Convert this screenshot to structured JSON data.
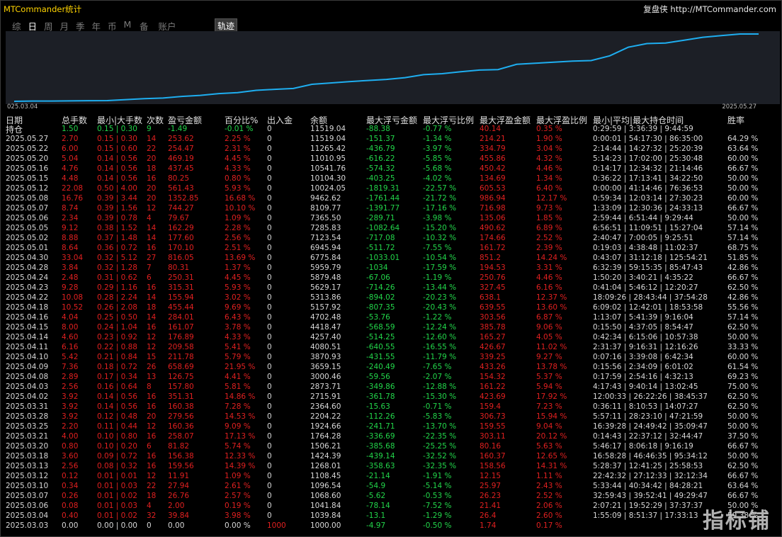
{
  "app": {
    "title": "MTCommander统计",
    "brand": "复盘侠 http://MTCommander.com"
  },
  "tabs": [
    {
      "label": "综",
      "active": false
    },
    {
      "label": "日",
      "active": true
    },
    {
      "label": "周",
      "active": false
    },
    {
      "label": "月",
      "active": false
    },
    {
      "label": "季",
      "active": false
    },
    {
      "label": "年",
      "active": false
    },
    {
      "label": "币",
      "active": false
    },
    {
      "label": "M",
      "active": false
    },
    {
      "label": "备",
      "active": false
    },
    {
      "label": "账户",
      "active": false
    }
  ],
  "track_button": "轨迹",
  "chart": {
    "date_start": "025.03.04",
    "date_end": "2025.05.27",
    "line_color": "#1eaef0",
    "bg_color": "#1c1f26"
  },
  "columns": {
    "date": "日期",
    "date2": "持仓",
    "total": "总手数",
    "minmax": "最小|大手数",
    "count": "次数",
    "pnl": "盈亏金额",
    "pct": "百分比%",
    "flow": "出入金",
    "balance": "余额",
    "mdd": "最大浮亏金额",
    "mddp": "最大浮亏比例",
    "mfe": "最大浮盈金额",
    "mfep": "最大浮盈比例",
    "hold": "最小|平均|最大持仓时间",
    "win": "胜率"
  },
  "holding": [
    "",
    "1.50",
    "0.15 | 0.30",
    "9",
    "-1.49",
    "-0.01 %",
    "0",
    "11519.04",
    "-88.38",
    "-0.77 %",
    "40.14",
    "0.35 %",
    "0:29:59 | 3:36:39 | 9:44:59",
    ""
  ],
  "rows": [
    [
      "2025.05.27",
      "2.70",
      "0.15 | 0.30",
      "14",
      "253.62",
      "2.25 %",
      "0",
      "11519.04",
      "-151.37",
      "-1.34 %",
      "214.21",
      "1.90 %",
      "0:00:01 | 54:17:30 | 86:35:00",
      "64.29 %"
    ],
    [
      "2025.05.22",
      "6.00",
      "0.15 | 0.60",
      "22",
      "254.47",
      "2.31 %",
      "0",
      "11265.42",
      "-436.79",
      "-3.97 %",
      "334.79",
      "3.04 %",
      "2:14:44 | 14:27:32 | 25:20:39",
      "63.64 %"
    ],
    [
      "2025.05.20",
      "5.04",
      "0.14 | 0.56",
      "20",
      "469.19",
      "4.45 %",
      "0",
      "11010.95",
      "-616.22",
      "-5.85 %",
      "455.86",
      "4.32 %",
      "5:14:23 | 17:02:00 | 25:30:48",
      "60.00 %"
    ],
    [
      "2025.05.16",
      "4.76",
      "0.14 | 0.56",
      "18",
      "437.45",
      "4.33 %",
      "0",
      "10541.76",
      "-574.32",
      "-5.68 %",
      "450.42",
      "4.46 %",
      "0:14:17 | 12:34:32 | 21:14:46",
      "66.67 %"
    ],
    [
      "2025.05.15",
      "4.48",
      "0.14 | 0.56",
      "16",
      "80.25",
      "0.80 %",
      "0",
      "10104.30",
      "-403.25",
      "-4.02 %",
      "134.69",
      "1.34 %",
      "0:36:22 | 17:13:41 | 34:22:50",
      "50.00 %"
    ],
    [
      "2025.05.12",
      "22.08",
      "0.50 | 4.00",
      "20",
      "561.43",
      "5.93 %",
      "0",
      "10024.05",
      "-1819.31",
      "-22.57 %",
      "605.53",
      "6.40 %",
      "0:00:00 | 41:14:46 | 76:36:53",
      "50.00 %"
    ],
    [
      "2025.05.08",
      "16.76",
      "0.39 | 3.44",
      "20",
      "1352.85",
      "16.68 %",
      "0",
      "9462.62",
      "-1761.44",
      "-21.72 %",
      "986.94",
      "12.17 %",
      "0:59:34 | 12:03:14 | 27:30:23",
      "60.00 %"
    ],
    [
      "2025.05.07",
      "8.74",
      "0.39 | 1.56",
      "12",
      "744.27",
      "10.10 %",
      "0",
      "8109.77",
      "-1391.77",
      "-17.16 %",
      "716.98",
      "9.73 %",
      "1:33:09 | 12:30:36 | 24:33:13",
      "66.67 %"
    ],
    [
      "2025.05.06",
      "2.34",
      "0.39 | 0.78",
      "4",
      "79.67",
      "1.09 %",
      "0",
      "7365.50",
      "-289.71",
      "-3.98 %",
      "135.06",
      "1.85 %",
      "2:59:44 | 6:51:44 | 9:29:44",
      "50.00 %"
    ],
    [
      "2025.05.05",
      "9.12",
      "0.38 | 1.52",
      "14",
      "162.29",
      "2.28 %",
      "0",
      "7285.83",
      "-1082.64",
      "-15.20 %",
      "490.62",
      "6.89 %",
      "6:56:51 | 11:09:51 | 15:27:04",
      "57.14 %"
    ],
    [
      "2025.05.02",
      "8.88",
      "0.37 | 1.48",
      "14",
      "177.60",
      "2.56 %",
      "0",
      "7123.54",
      "-717.08",
      "-10.32 %",
      "174.66",
      "2.52 %",
      "2:40:47 | 7:00:05 | 9:25:51",
      "57.14 %"
    ],
    [
      "2025.05.01",
      "8.64",
      "0.36 | 0.72",
      "16",
      "170.10",
      "2.51 %",
      "0",
      "6945.94",
      "-511.72",
      "-7.55 %",
      "161.72",
      "2.39 %",
      "0:19:03 | 4:38:48 | 11:02:37",
      "68.75 %"
    ],
    [
      "2025.04.30",
      "33.04",
      "0.32 | 5.12",
      "27",
      "816.05",
      "13.69 %",
      "0",
      "6775.84",
      "-1033.01",
      "-10.54 %",
      "851.2",
      "14.24 %",
      "0:43:07 | 31:12:18 | 125:54:21",
      "51.85 %"
    ],
    [
      "2025.04.28",
      "3.84",
      "0.32 | 1.28",
      "7",
      "80.31",
      "1.37 %",
      "0",
      "5959.79",
      "-1034",
      "-17.59 %",
      "194.53",
      "3.31 %",
      "6:32:39 | 59:15:35 | 85:47:43",
      "42.86 %"
    ],
    [
      "2025.04.24",
      "2.48",
      "0.31 | 0.62",
      "6",
      "250.31",
      "4.45 %",
      "0",
      "5879.48",
      "-67.06",
      "-1.19 %",
      "250.76",
      "4.46 %",
      "1:50:20 | 3:40:21 | 4:35:22",
      "66.67 %"
    ],
    [
      "2025.04.23",
      "9.28",
      "0.29 | 1.16",
      "16",
      "315.31",
      "5.93 %",
      "0",
      "5629.17",
      "-714.26",
      "-13.44 %",
      "327.45",
      "6.16 %",
      "0:41:04 | 5:46:12 | 12:20:27",
      "62.50 %"
    ],
    [
      "2025.04.22",
      "10.08",
      "0.28 | 2.24",
      "14",
      "155.94",
      "3.02 %",
      "0",
      "5313.86",
      "-894.02",
      "-20.23 %",
      "638.1",
      "12.37 %",
      "18:09:26 | 28:43:44 | 37:54:28",
      "42.86 %"
    ],
    [
      "2025.04.18",
      "10.52",
      "0.26 | 2.08",
      "18",
      "455.44",
      "9.69 %",
      "0",
      "5157.92",
      "-807.35",
      "-20.43 %",
      "639.55",
      "13.60 %",
      "6:09:02 | 12:42:01 | 18:53:58",
      "55.56 %"
    ],
    [
      "2025.04.16",
      "4.04",
      "0.25 | 0.50",
      "14",
      "284.01",
      "6.43 %",
      "0",
      "4702.48",
      "-53.76",
      "-1.22 %",
      "303.56",
      "6.87 %",
      "1:13:07 | 5:41:39 | 9:16:04",
      "57.14 %"
    ],
    [
      "2025.04.15",
      "8.00",
      "0.24 | 1.04",
      "16",
      "161.07",
      "3.78 %",
      "0",
      "4418.47",
      "-568.59",
      "-12.24 %",
      "385.78",
      "9.06 %",
      "0:15:50 | 4:37:05 | 8:54:47",
      "62.50 %"
    ],
    [
      "2025.04.14",
      "4.60",
      "0.23 | 0.92",
      "12",
      "176.89",
      "4.33 %",
      "0",
      "4257.40",
      "-514.25",
      "-12.60 %",
      "165.27",
      "4.05 %",
      "0:42:34 | 6:15:06 | 10:57:38",
      "50.00 %"
    ],
    [
      "2025.04.11",
      "6.16",
      "0.22 | 0.88",
      "12",
      "209.58",
      "5.41 %",
      "0",
      "4080.51",
      "-640.55",
      "-16.55 %",
      "426.67",
      "11.02 %",
      "2:31:37 | 9:16:31 | 12:16:26",
      "33.33 %"
    ],
    [
      "2025.04.10",
      "5.42",
      "0.21 | 0.84",
      "15",
      "211.78",
      "5.79 %",
      "0",
      "3870.93",
      "-431.55",
      "-11.79 %",
      "339.25",
      "9.27 %",
      "0:07:16 | 3:39:08 | 6:42:34",
      "60.00 %"
    ],
    [
      "2025.04.09",
      "7.36",
      "0.18 | 0.72",
      "26",
      "658.69",
      "21.95 %",
      "0",
      "3659.15",
      "-240.49",
      "-7.65 %",
      "433.26",
      "13.78 %",
      "0:15:56 | 2:34:09 | 6:01:02",
      "61.54 %"
    ],
    [
      "2025.04.08",
      "2.89",
      "0.17 | 0.34",
      "13",
      "126.75",
      "4.41 %",
      "0",
      "3000.46",
      "-59.56",
      "-2.07 %",
      "154.32",
      "5.37 %",
      "0:17:59 | 2:54:16 | 4:32:13",
      "69.23 %"
    ],
    [
      "2025.04.03",
      "2.56",
      "0.16 | 0.64",
      "8",
      "157.80",
      "5.81 %",
      "0",
      "2873.71",
      "-349.86",
      "-12.88 %",
      "161.22",
      "5.94 %",
      "4:17:43 | 9:40:14 | 13:02:45",
      "75.00 %"
    ],
    [
      "2025.04.02",
      "3.92",
      "0.14 | 0.56",
      "16",
      "351.31",
      "14.86 %",
      "0",
      "2715.91",
      "-361.78",
      "-15.30 %",
      "423.69",
      "17.92 %",
      "12:00:33 | 26:22:26 | 38:45:37",
      "62.50 %"
    ],
    [
      "2025.03.31",
      "3.92",
      "0.14 | 0.56",
      "16",
      "160.38",
      "7.28 %",
      "0",
      "2364.60",
      "-15.63",
      "-0.71 %",
      "159.4",
      "7.23 %",
      "0:36:11 | 8:10:53 | 14:07:27",
      "62.50 %"
    ],
    [
      "2025.03.28",
      "3.92",
      "0.12 | 0.48",
      "20",
      "279.56",
      "14.53 %",
      "0",
      "2204.22",
      "-112.26",
      "-5.83 %",
      "306.73",
      "15.94 %",
      "5:57:11 | 28:23:10 | 47:21:59",
      "50.00 %"
    ],
    [
      "2025.03.25",
      "2.20",
      "0.11 | 0.44",
      "12",
      "160.36",
      "9.09 %",
      "0",
      "1924.66",
      "-241.71",
      "-13.70 %",
      "159.55",
      "9.04 %",
      "16:39:28 | 24:49:42 | 35:09:47",
      "50.00 %"
    ],
    [
      "2025.03.21",
      "4.00",
      "0.10 | 0.80",
      "16",
      "258.07",
      "17.13 %",
      "0",
      "1764.28",
      "-336.69",
      "-22.35 %",
      "303.11",
      "20.12 %",
      "0:14:43 | 22:37:12 | 32:44:47",
      "37.50 %"
    ],
    [
      "2025.03.20",
      "0.80",
      "0.10 | 0.20",
      "6",
      "81.82",
      "5.74 %",
      "0",
      "1506.21",
      "-385.68",
      "-25.25 %",
      "80.16",
      "5.63 %",
      "5:46:17 | 8:06:18 | 9:16:19",
      "66.67 %"
    ],
    [
      "2025.03.18",
      "3.60",
      "0.09 | 0.72",
      "16",
      "156.38",
      "12.33 %",
      "0",
      "1424.39",
      "-439.14",
      "-32.52 %",
      "160.37",
      "12.65 %",
      "16:58:28 | 46:46:35 | 95:34:12",
      "50.00 %"
    ],
    [
      "2025.03.13",
      "2.56",
      "0.08 | 0.32",
      "16",
      "159.56",
      "14.39 %",
      "0",
      "1268.01",
      "-358.63",
      "-32.35 %",
      "158.56",
      "14.31 %",
      "5:28:37 | 12:41:25 | 25:58:53",
      "62.50 %"
    ],
    [
      "2025.03.12",
      "0.12",
      "0.01 | 0.01",
      "12",
      "11.91",
      "1.09 %",
      "0",
      "1108.45",
      "-21.14",
      "-1.91 %",
      "12.15",
      "1.11 %",
      "22:42:32 | 27:12:33 | 32:12:34",
      "66.67 %"
    ],
    [
      "2025.03.10",
      "0.34",
      "0.01 | 0.03",
      "22",
      "27.94",
      "2.61 %",
      "0",
      "1096.54",
      "-54.9",
      "-5.14 %",
      "25.97",
      "2.43 %",
      "5:33:44 | 40:34:42 | 84:28:21",
      "63.64 %"
    ],
    [
      "2025.03.07",
      "0.26",
      "0.01 | 0.02",
      "18",
      "26.76",
      "2.57 %",
      "0",
      "1068.60",
      "-5.62",
      "-0.53 %",
      "26.23",
      "2.52 %",
      "32:59:43 | 39:52:41 | 49:29:47",
      "66.67 %"
    ],
    [
      "2025.03.06",
      "0.08",
      "0.01 | 0.03",
      "4",
      "2.00",
      "0.19 %",
      "0",
      "1041.84",
      "-78.14",
      "-7.52 %",
      "21.41",
      "2.06 %",
      "2:07:21 | 19:52:29 | 37:37:37",
      "50.00 %"
    ],
    [
      "2025.03.04",
      "0.40",
      "0.01 | 0.02",
      "32",
      "39.84",
      "3.98 %",
      "0",
      "1039.84",
      "-13.1",
      "-1.29 %",
      "26.4",
      "2.60 %",
      "1:55:09 | 8:51:37 | 17:33:13",
      "59.38 %"
    ],
    [
      "2025.03.03",
      "0.00",
      "0.00 | 0.00",
      "0",
      "0.00",
      "0.00 %",
      "1000",
      "1000.00",
      "-4.97",
      "-0.50 %",
      "1.74",
      "0.17 %",
      "",
      ""
    ]
  ],
  "watermark": "指标铺"
}
